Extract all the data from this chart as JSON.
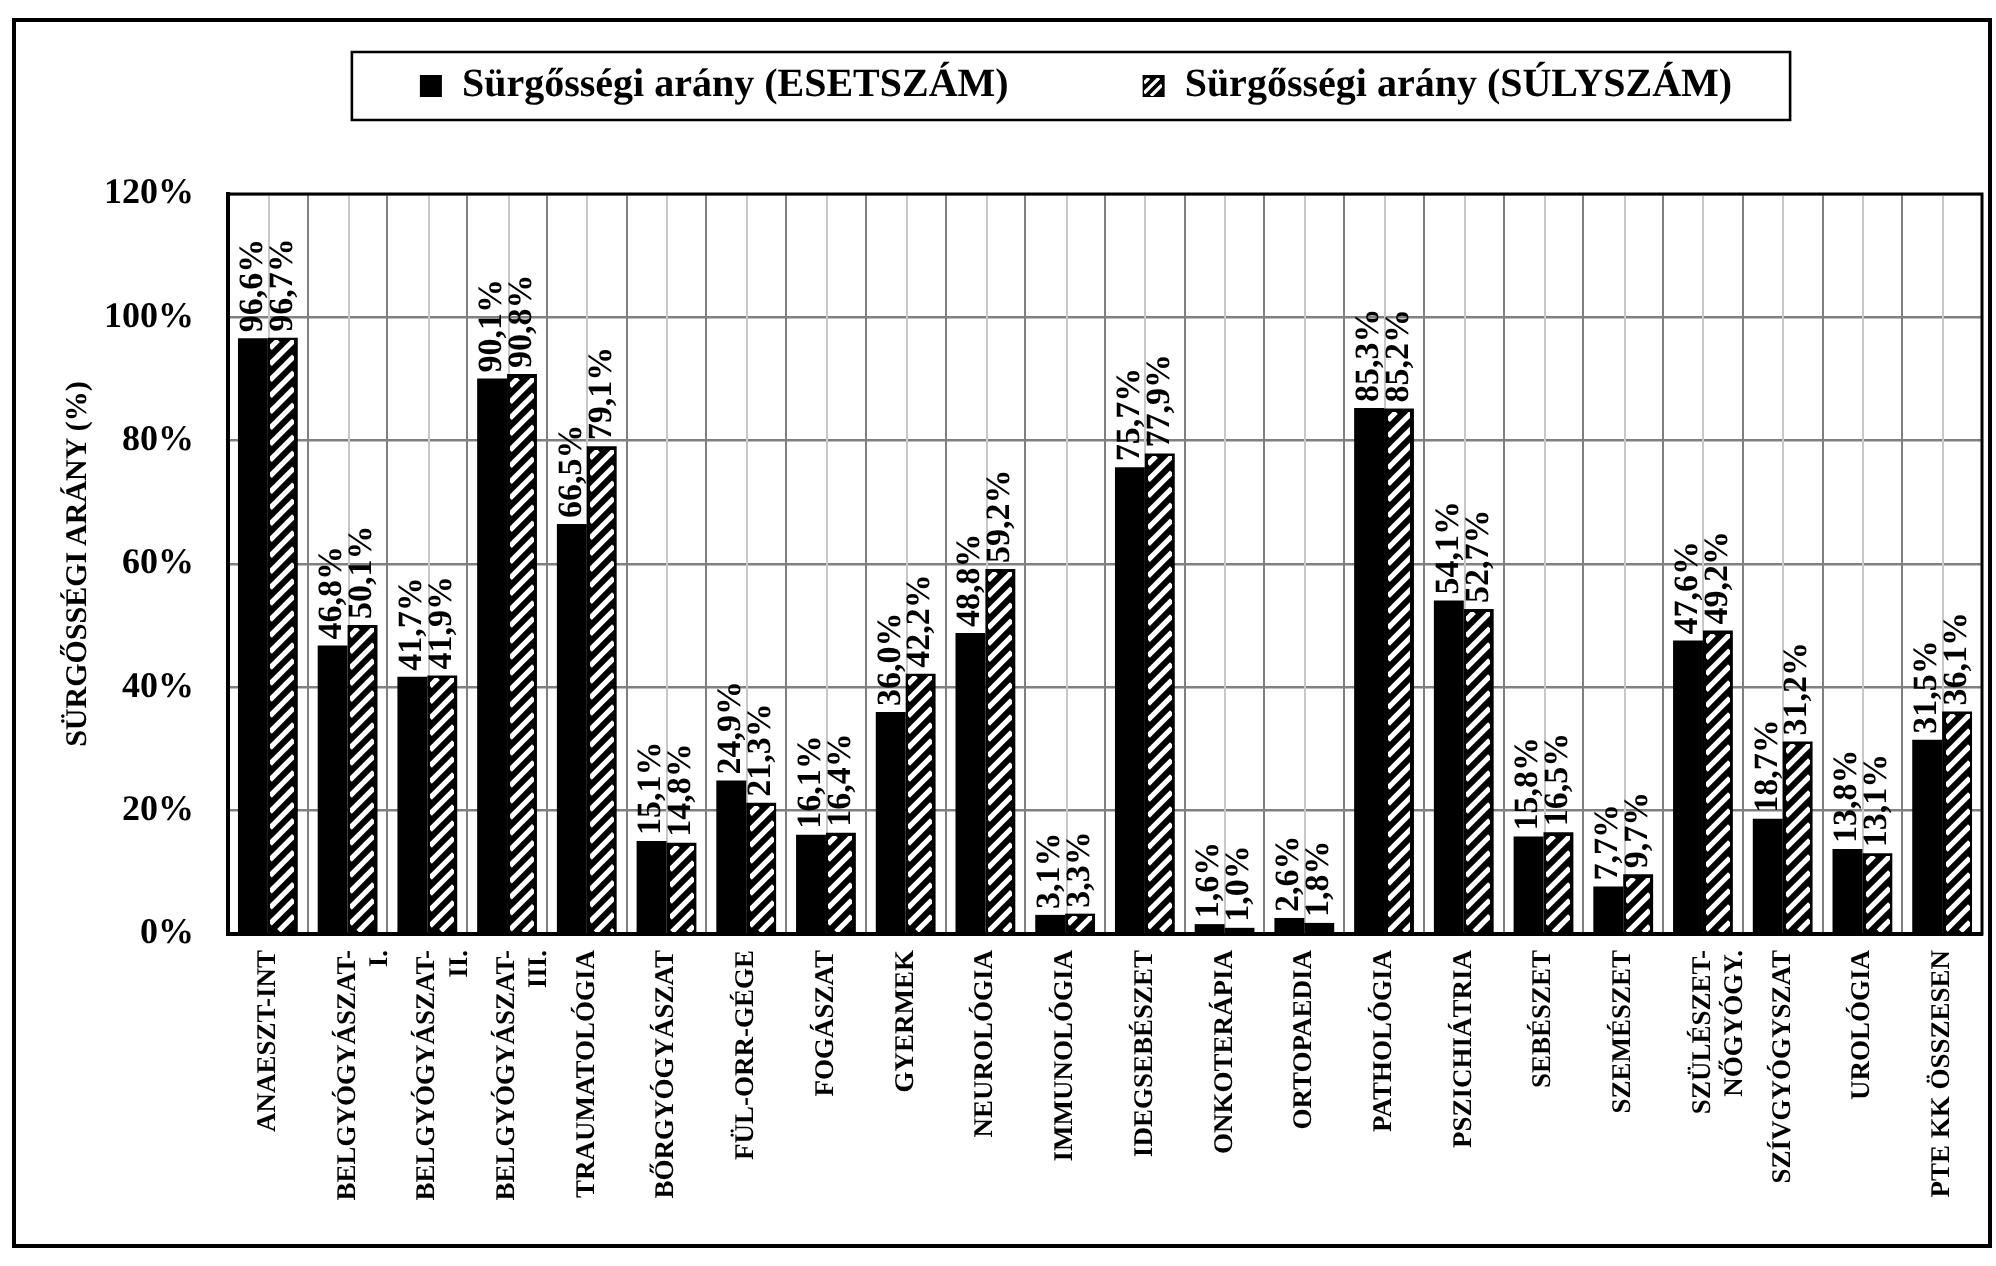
{
  "chart_data": {
    "type": "bar",
    "ylabel": "SÜRGŐSSÉGI ARÁNY (%)",
    "categories": [
      "ANAESZT-INT",
      "BELGYÓGYÁSZAT-I.",
      "BELGYÓGYÁSZAT-II.",
      "BELGYÓGYÁSZAT-III.",
      "TRAUMATOLÓGIA",
      "BŐRGYÓGYÁSZAT",
      "FÜL-ORR-GÉGE",
      "FOGÁSZAT",
      "GYERMEK",
      "NEUROLÓGIA",
      "IMMUNOLÓGIA",
      "IDEGSEBÉSZET",
      "ONKOTERÁPIA",
      "ORTOPAEDIA",
      "PATHOLÓGIA",
      "PSZICHIÁTRIA",
      "SEBÉSZET",
      "SZEMÉSZET",
      "SZÜLÉSZET-NŐGYÓGY.",
      "SZÍVGYÓGYSZAT",
      "UROLÓGIA",
      "PTE KK ÖSSZESEN"
    ],
    "series": [
      {
        "name": "Sürgősségi arány (ESETSZÁM)",
        "color": "#000000",
        "values": [
          96.6,
          46.8,
          41.7,
          90.1,
          66.5,
          15.1,
          24.9,
          16.1,
          36.0,
          48.8,
          3.1,
          75.7,
          1.6,
          2.6,
          85.3,
          54.1,
          15.8,
          7.7,
          47.6,
          18.7,
          13.8,
          31.5
        ],
        "value_labels": [
          "96,6%",
          "46,8%",
          "41,7%",
          "90,1%",
          "66,5%",
          "15,1%",
          "24,9%",
          "16,1%",
          "36,0%",
          "48,8%",
          "3,1%",
          "75,7%",
          "1,6%",
          "2,6%",
          "85,3%",
          "54,1%",
          "15,8%",
          "7,7%",
          "47,6%",
          "18,7%",
          "13,8%",
          "31,5%"
        ]
      },
      {
        "name": "Sürgősségi arány (SÚLYSZÁM)",
        "color": "#000000",
        "values": [
          96.7,
          50.1,
          41.9,
          90.8,
          79.1,
          14.8,
          21.3,
          16.4,
          42.2,
          59.2,
          3.3,
          77.9,
          1.0,
          1.8,
          85.2,
          52.7,
          16.5,
          9.7,
          49.2,
          31.2,
          13.1,
          36.1
        ],
        "value_labels": [
          "96,7%",
          "50,1%",
          "41,9%",
          "90,8%",
          "79,1%",
          "14,8%",
          "21,3%",
          "16,4%",
          "42,2%",
          "59,2%",
          "3,3%",
          "77,9%",
          "1,0%",
          "1,8%",
          "85,2%",
          "52,7%",
          "16,5%",
          "9,7%",
          "49,2%",
          "31,2%",
          "13,1%",
          "36,1%"
        ]
      }
    ],
    "ylim": [
      0,
      120
    ],
    "yticks": [
      {
        "value": 0,
        "label": "0%"
      },
      {
        "value": 20,
        "label": "20%"
      },
      {
        "value": 40,
        "label": "40%"
      },
      {
        "value": 60,
        "label": "60%"
      },
      {
        "value": 80,
        "label": "80%"
      },
      {
        "value": 100,
        "label": "100%"
      },
      {
        "value": 120,
        "label": "120%"
      }
    ],
    "grid": true,
    "legend": "top"
  }
}
